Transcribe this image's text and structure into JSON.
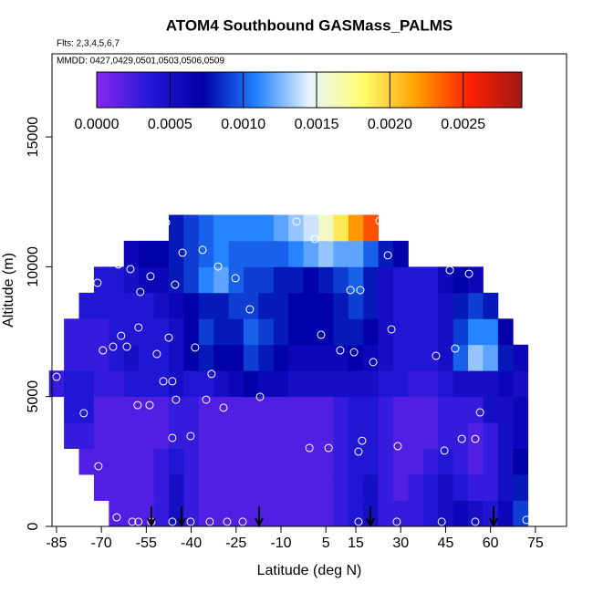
{
  "chart_data": {
    "type": "heatmap",
    "title": "ATOM4 Southbound GASMass_PALMS",
    "subtitle": "Flts: 2,3,4,5,6,7",
    "annotation": "MMDD: 0427,0429,0501,0503,0506,0509",
    "x_label": "Latitude (deg N)",
    "y_label": "Altitude (m)",
    "xlim": [
      -86.5,
      85.4
    ],
    "ylim": [
      0,
      18200
    ],
    "xticks": [
      -85,
      -70,
      -55,
      -40,
      -25,
      -10,
      5,
      15,
      30,
      45,
      60,
      75
    ],
    "yticks": [
      0,
      5000,
      10000,
      15000
    ],
    "clim": [
      0,
      0.0029
    ],
    "cticks": [
      {
        "value": 0,
        "label": "0.0000"
      },
      {
        "value": 0.0005,
        "label": "0.0005"
      },
      {
        "value": 0.001,
        "label": "0.0010"
      },
      {
        "value": 0.0015,
        "label": "0.0015"
      },
      {
        "value": 0.002,
        "label": "0.0020"
      },
      {
        "value": 0.0025,
        "label": "0.0025"
      }
    ],
    "colormap": [
      "#8828f0",
      "#2418d8",
      "#0000a8",
      "#1f80ff",
      "#e8f4ff",
      "#ffff70",
      "#ffa000",
      "#ff2000",
      "#a01818"
    ],
    "x_edges": [
      -87.5,
      -82.5,
      -77.5,
      -72.5,
      -67.5,
      -62.5,
      -57.5,
      -52.5,
      -47.5,
      -42.5,
      -37.5,
      -32.5,
      -27.5,
      -22.5,
      -17.5,
      -12.5,
      -7.5,
      -2.5,
      2.5,
      7.5,
      12.5,
      17.5,
      22.5,
      27.5,
      32.5,
      37.5,
      42.5,
      47.5,
      52.5,
      57.5,
      62.5,
      67.5,
      72.5
    ],
    "y_edges": [
      0,
      1000,
      2000,
      3000,
      4000,
      5000,
      6000,
      7000,
      8000,
      9000,
      10000,
      11000,
      12000
    ],
    "z": [
      [
        null,
        null,
        null,
        null,
        0.0002,
        0.0002,
        0.0002,
        0.0003,
        0.0005,
        0.0003,
        0.0002,
        0.0002,
        0.0002,
        0.0002,
        0.0002,
        0.0002,
        0.0002,
        0.0002,
        0.0002,
        0.0003,
        0.0004,
        0.0005,
        0.0003,
        0.0003,
        0.0003,
        0.0004,
        0.0005,
        0.0006,
        0.0005,
        0.0004,
        0.0006,
        0.0009
      ],
      [
        null,
        null,
        null,
        0.0002,
        0.0002,
        0.0002,
        0.0002,
        0.0003,
        0.0005,
        0.0003,
        0.0002,
        0.0002,
        0.0002,
        0.0002,
        0.0002,
        0.0002,
        0.0002,
        0.0002,
        0.0002,
        0.0003,
        0.0004,
        0.0005,
        0.0003,
        0.0002,
        0.0003,
        0.0004,
        0.0005,
        0.0004,
        0.0003,
        0.0003,
        0.0005,
        0.0008
      ],
      [
        null,
        null,
        0.0002,
        0.0002,
        0.0002,
        0.0002,
        0.0002,
        0.0003,
        0.0004,
        0.0003,
        0.0002,
        0.0002,
        0.0002,
        0.0002,
        0.0002,
        0.0002,
        0.0002,
        0.0002,
        0.0002,
        0.0003,
        0.0004,
        0.0004,
        0.0003,
        0.0002,
        0.0002,
        0.0003,
        0.0004,
        0.0003,
        0.0002,
        0.0003,
        0.0005,
        0.0007
      ],
      [
        null,
        0.0003,
        0.0003,
        0.0002,
        0.0002,
        0.0002,
        0.0002,
        0.0002,
        0.0003,
        0.0003,
        0.0002,
        0.0002,
        0.0002,
        0.0002,
        0.0002,
        0.0002,
        0.0002,
        0.0002,
        0.0002,
        0.0003,
        0.0004,
        0.0004,
        0.0003,
        0.0002,
        0.0002,
        0.0002,
        0.0003,
        0.0003,
        0.0002,
        0.0003,
        0.0005,
        0.0006
      ],
      [
        null,
        0.0004,
        0.0004,
        0.0002,
        0.0002,
        0.0002,
        0.0002,
        0.0002,
        0.0003,
        0.0003,
        0.0002,
        0.0002,
        0.0002,
        0.0002,
        0.0002,
        0.0002,
        0.0002,
        0.0002,
        0.0002,
        0.0003,
        0.0004,
        0.0004,
        0.0003,
        0.0002,
        0.0002,
        0.0002,
        0.0003,
        0.0003,
        0.0003,
        0.0005,
        0.0005,
        0.0006
      ],
      [
        0.0003,
        0.0004,
        0.0004,
        0.0003,
        0.0003,
        0.0004,
        0.0004,
        0.0004,
        0.0005,
        0.0004,
        0.0004,
        0.0005,
        0.0006,
        0.0007,
        0.0006,
        0.0006,
        0.0005,
        0.0005,
        0.0005,
        0.0005,
        0.0005,
        0.0005,
        0.0004,
        0.0004,
        0.0003,
        0.0003,
        0.0004,
        0.0005,
        0.0005,
        0.0005,
        0.0006,
        0.0005
      ],
      [
        null,
        0.0003,
        0.0003,
        0.0003,
        0.0004,
        0.0005,
        0.0004,
        0.0004,
        0.0005,
        0.0007,
        0.0008,
        0.0007,
        0.0007,
        0.0009,
        0.0008,
        0.0007,
        0.0006,
        0.0006,
        0.0006,
        0.0006,
        0.0007,
        0.0006,
        0.0005,
        0.0004,
        0.0004,
        0.0004,
        0.0005,
        0.001,
        0.0013,
        0.0012,
        0.0008,
        0.0006
      ],
      [
        null,
        0.0003,
        0.0003,
        0.0003,
        0.0004,
        0.0004,
        0.0004,
        0.0004,
        0.0005,
        0.0007,
        0.0009,
        0.0008,
        0.0008,
        0.001,
        0.0009,
        0.0008,
        0.0007,
        0.0007,
        0.0007,
        0.0008,
        0.0008,
        0.0007,
        0.0005,
        0.0004,
        0.0004,
        0.0004,
        0.0005,
        0.0009,
        0.0011,
        0.0011,
        0.0007,
        null
      ],
      [
        null,
        null,
        0.0004,
        0.0004,
        0.0004,
        0.0004,
        0.0004,
        0.0005,
        0.0006,
        0.0007,
        0.0008,
        0.0008,
        0.0009,
        0.0009,
        0.0008,
        0.0008,
        0.0007,
        0.0007,
        0.0007,
        0.0008,
        0.0009,
        0.0008,
        0.0005,
        0.0004,
        0.0004,
        0.0004,
        0.0005,
        0.0008,
        0.0009,
        0.0008,
        null,
        null
      ],
      [
        null,
        null,
        null,
        0.0004,
        0.0004,
        0.0005,
        0.0006,
        0.0006,
        0.0008,
        0.0009,
        0.0011,
        0.0012,
        0.001,
        0.0009,
        0.0009,
        0.0008,
        0.0008,
        0.0007,
        0.0008,
        0.0009,
        0.001,
        0.0008,
        0.0005,
        0.0004,
        0.0004,
        0.0004,
        0.0006,
        0.0007,
        0.0006,
        null,
        null,
        null
      ],
      [
        null,
        null,
        null,
        null,
        null,
        0.0006,
        0.0007,
        0.0007,
        0.0008,
        0.0009,
        0.001,
        0.0011,
        0.001,
        0.001,
        0.001,
        0.001,
        0.0011,
        0.0012,
        0.0013,
        0.0012,
        0.0012,
        0.001,
        0.0008,
        0.0007,
        null,
        null,
        null,
        null,
        null,
        null,
        null,
        null
      ],
      [
        null,
        null,
        null,
        null,
        null,
        null,
        null,
        null,
        0.0008,
        0.0009,
        0.001,
        0.0011,
        0.0011,
        0.0011,
        0.0011,
        0.0012,
        0.0013,
        0.0014,
        0.0016,
        0.0019,
        0.0022,
        0.0024,
        null,
        null,
        null,
        null,
        null,
        null,
        null,
        null,
        null,
        null
      ]
    ],
    "points": {
      "color": "#ffffff",
      "x": [
        -85,
        -75.9,
        -71,
        -64.9,
        -59.7,
        -57.6,
        -53.3,
        -46.3,
        -40.2,
        -33.8,
        -28,
        -22.8,
        15.9,
        28.7,
        43.7,
        54.9,
        72,
        -71.3,
        -64.3,
        -60.3,
        -53.6,
        -57,
        -45.4,
        -48.4,
        -42.9,
        -36.2,
        -31,
        -25.2,
        -20.4,
        -4.8,
        1.3,
        22.9,
        25.7,
        13.2,
        16.5,
        46.4,
        52.8,
        -63.4,
        -66.1,
        -69.5,
        -61.5,
        -57.6,
        -51.5,
        -47.5,
        -38.7,
        -33.2,
        -49.3,
        -46.3,
        -45.1,
        -57.9,
        -53.9,
        -35,
        -29.2,
        -17,
        3.4,
        9.8,
        14.4,
        20.8,
        26.9,
        41.8,
        48.2,
        56.5,
        70.2,
        -40.2,
        -46.3,
        -0.5,
        5.9,
        17.1,
        15.9,
        29,
        44.6,
        50.4,
        54.9
      ],
      "y": [
        5760,
        4360,
        2320,
        350,
        180,
        180,
        180,
        180,
        180,
        180,
        180,
        180,
        180,
        180,
        180,
        180,
        250,
        9380,
        10090,
        9910,
        9630,
        9030,
        9310,
        11700,
        10540,
        10650,
        10010,
        9560,
        8360,
        11740,
        11070,
        11770,
        10440,
        9100,
        9100,
        9870,
        9730,
        7340,
        6920,
        6780,
        6920,
        7660,
        6640,
        7270,
        6890,
        5870,
        5590,
        5590,
        4880,
        4670,
        4670,
        4880,
        4570,
        4990,
        7380,
        6780,
        6710,
        6330,
        7590,
        6570,
        6850,
        4390,
        7340,
        3480,
        3410,
        3020,
        3020,
        3300,
        2880,
        3090,
        2920,
        3370,
        3370
      ]
    },
    "arrows": [
      -53.3,
      -43.2,
      -17.3,
      19.9,
      61
    ]
  }
}
